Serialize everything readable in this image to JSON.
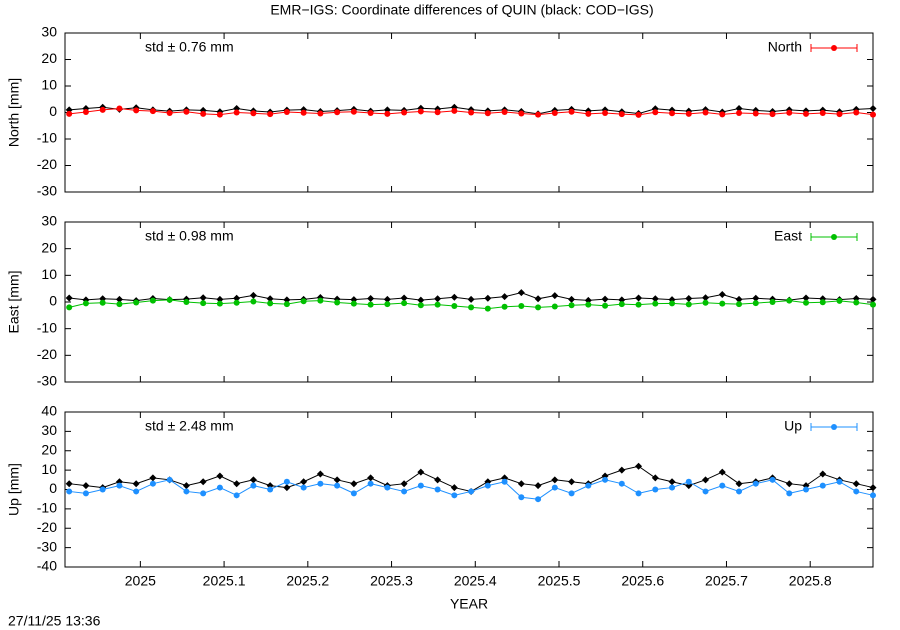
{
  "title": "EMR−IGS: Coordinate differences of QUIN (black: COD−IGS)",
  "timestamp": "27/11/25 13:36",
  "chart_data": [
    {
      "type": "line",
      "ylabel": "North [mm]",
      "annotation": "std ± 0.76 mm",
      "legend": "upper right",
      "xticklabels": false,
      "xlim": [
        2024.91,
        2025.875
      ],
      "xticks": [
        2025,
        2025.1,
        2025.2,
        2025.3,
        2025.4,
        2025.5,
        2025.6,
        2025.7,
        2025.8
      ],
      "ylim": [
        -30,
        30
      ],
      "yticks": [
        -30,
        -20,
        -10,
        0,
        10,
        20,
        30
      ],
      "x": [
        2024.915,
        2024.935,
        2024.955,
        2024.975,
        2024.995,
        2025.015,
        2025.035,
        2025.055,
        2025.075,
        2025.095,
        2025.115,
        2025.135,
        2025.155,
        2025.175,
        2025.195,
        2025.215,
        2025.235,
        2025.255,
        2025.275,
        2025.295,
        2025.315,
        2025.335,
        2025.355,
        2025.375,
        2025.395,
        2025.415,
        2025.435,
        2025.455,
        2025.475,
        2025.495,
        2025.515,
        2025.535,
        2025.555,
        2025.575,
        2025.595,
        2025.615,
        2025.635,
        2025.655,
        2025.675,
        2025.695,
        2025.715,
        2025.735,
        2025.755,
        2025.775,
        2025.795,
        2025.815,
        2025.835,
        2025.855,
        2025.875
      ],
      "series": [
        {
          "color": "#000000",
          "values": [
            1.0,
            1.5,
            2.0,
            1.2,
            1.8,
            1.0,
            0.5,
            1.0,
            0.8,
            0.3,
            1.5,
            0.6,
            0.2,
            0.9,
            1.1,
            0.4,
            0.7,
            1.2,
            0.5,
            1.0,
            0.8,
            1.6,
            1.3,
            2.0,
            1.1,
            0.6,
            1.0,
            0.4,
            -0.5,
            0.8,
            1.2,
            0.6,
            1.0,
            0.3,
            -0.4,
            1.4,
            0.9,
            0.5,
            1.1,
            0.2,
            1.5,
            0.8,
            0.4,
            1.0,
            0.6,
            0.9,
            0.3,
            1.2,
            1.5
          ]
        },
        {
          "name": "North",
          "color": "#ff0000",
          "values": [
            -0.5,
            0.2,
            1.0,
            1.5,
            0.8,
            0.5,
            -0.2,
            0.3,
            -0.5,
            -0.8,
            0.0,
            -0.3,
            -0.6,
            0.2,
            -0.1,
            -0.4,
            0.1,
            0.3,
            -0.2,
            -0.5,
            0.0,
            0.4,
            0.1,
            0.6,
            0.0,
            -0.3,
            0.2,
            -0.4,
            -0.8,
            -0.2,
            0.3,
            -0.5,
            -0.2,
            -0.6,
            -0.9,
            0.1,
            -0.3,
            -0.5,
            0.0,
            -0.7,
            -0.2,
            -0.4,
            -0.6,
            -0.1,
            -0.5,
            -0.2,
            -0.6,
            0.0,
            -0.8
          ]
        }
      ]
    },
    {
      "type": "line",
      "ylabel": "East [mm]",
      "annotation": "std ± 0.98 mm",
      "legend": "upper right",
      "xticklabels": false,
      "xlim": [
        2024.91,
        2025.875
      ],
      "xticks": [
        2025,
        2025.1,
        2025.2,
        2025.3,
        2025.4,
        2025.5,
        2025.6,
        2025.7,
        2025.8
      ],
      "ylim": [
        -30,
        30
      ],
      "yticks": [
        -30,
        -20,
        -10,
        0,
        10,
        20,
        30
      ],
      "x": [
        2024.915,
        2024.935,
        2024.955,
        2024.975,
        2024.995,
        2025.015,
        2025.035,
        2025.055,
        2025.075,
        2025.095,
        2025.115,
        2025.135,
        2025.155,
        2025.175,
        2025.195,
        2025.215,
        2025.235,
        2025.255,
        2025.275,
        2025.295,
        2025.315,
        2025.335,
        2025.355,
        2025.375,
        2025.395,
        2025.415,
        2025.435,
        2025.455,
        2025.475,
        2025.495,
        2025.515,
        2025.535,
        2025.555,
        2025.575,
        2025.595,
        2025.615,
        2025.635,
        2025.655,
        2025.675,
        2025.695,
        2025.715,
        2025.735,
        2025.755,
        2025.775,
        2025.795,
        2025.815,
        2025.835,
        2025.855,
        2025.875
      ],
      "series": [
        {
          "color": "#000000",
          "values": [
            1.5,
            0.8,
            1.2,
            1.0,
            0.5,
            1.3,
            0.9,
            1.1,
            1.6,
            1.0,
            1.4,
            2.5,
            1.2,
            0.8,
            1.0,
            1.7,
            1.1,
            0.9,
            1.3,
            1.0,
            1.5,
            0.7,
            1.2,
            1.8,
            1.0,
            1.4,
            2.0,
            3.5,
            1.2,
            2.4,
            1.0,
            0.6,
            1.1,
            0.8,
            1.5,
            1.2,
            0.9,
            1.3,
            1.6,
            2.8,
            1.0,
            1.4,
            1.1,
            0.7,
            1.5,
            1.2,
            0.9,
            1.3,
            1.0
          ]
        },
        {
          "name": "East",
          "color": "#00c000",
          "values": [
            -2.0,
            -0.5,
            -0.3,
            -0.8,
            -0.2,
            0.5,
            0.8,
            0.0,
            -0.4,
            -0.6,
            -0.3,
            0.2,
            -0.5,
            -0.8,
            0.3,
            0.5,
            -0.2,
            -0.6,
            -1.0,
            -0.8,
            -0.4,
            -1.2,
            -1.0,
            -1.5,
            -2.0,
            -2.5,
            -1.8,
            -1.5,
            -2.0,
            -1.7,
            -1.2,
            -1.0,
            -1.4,
            -0.8,
            -1.0,
            -0.6,
            -0.5,
            -0.9,
            -0.3,
            -0.6,
            -0.8,
            -0.4,
            0.0,
            0.5,
            -0.3,
            -0.1,
            0.4,
            -0.2,
            -1.0
          ]
        }
      ]
    },
    {
      "type": "line",
      "ylabel": "Up [mm]",
      "xlabel": "YEAR",
      "annotation": "std ± 2.48 mm",
      "legend": "upper right",
      "xticklabels": true,
      "xlim": [
        2024.91,
        2025.875
      ],
      "xticks": [
        2025,
        2025.1,
        2025.2,
        2025.3,
        2025.4,
        2025.5,
        2025.6,
        2025.7,
        2025.8
      ],
      "ylim": [
        -40,
        40
      ],
      "yticks": [
        -40,
        -30,
        -20,
        -10,
        0,
        10,
        20,
        30,
        40
      ],
      "x": [
        2024.915,
        2024.935,
        2024.955,
        2024.975,
        2024.995,
        2025.015,
        2025.035,
        2025.055,
        2025.075,
        2025.095,
        2025.115,
        2025.135,
        2025.155,
        2025.175,
        2025.195,
        2025.215,
        2025.235,
        2025.255,
        2025.275,
        2025.295,
        2025.315,
        2025.335,
        2025.355,
        2025.375,
        2025.395,
        2025.415,
        2025.435,
        2025.455,
        2025.475,
        2025.495,
        2025.515,
        2025.535,
        2025.555,
        2025.575,
        2025.595,
        2025.615,
        2025.635,
        2025.655,
        2025.675,
        2025.695,
        2025.715,
        2025.735,
        2025.755,
        2025.775,
        2025.795,
        2025.815,
        2025.835,
        2025.855,
        2025.875
      ],
      "series": [
        {
          "color": "#000000",
          "values": [
            3,
            2,
            1,
            4,
            3,
            6,
            5,
            2,
            4,
            7,
            3,
            5,
            2,
            1,
            4,
            8,
            5,
            3,
            6,
            2,
            3,
            9,
            5,
            1,
            -1,
            4,
            6,
            3,
            2,
            5,
            4,
            3,
            7,
            10,
            12,
            6,
            4,
            2,
            5,
            9,
            3,
            4,
            6,
            3,
            2,
            8,
            5,
            3,
            1
          ]
        },
        {
          "name": "Up",
          "color": "#1e90ff",
          "values": [
            -1,
            -2,
            0,
            2,
            -1,
            3,
            5,
            -1,
            -2,
            1,
            -3,
            2,
            0,
            4,
            1,
            3,
            2,
            -2,
            3,
            1,
            -1,
            2,
            0,
            -3,
            -1,
            2,
            4,
            -4,
            -5,
            1,
            -2,
            2,
            5,
            3,
            -2,
            0,
            1,
            4,
            -1,
            2,
            -1,
            3,
            5,
            -2,
            0,
            2,
            4,
            -1,
            -3
          ]
        }
      ]
    }
  ]
}
